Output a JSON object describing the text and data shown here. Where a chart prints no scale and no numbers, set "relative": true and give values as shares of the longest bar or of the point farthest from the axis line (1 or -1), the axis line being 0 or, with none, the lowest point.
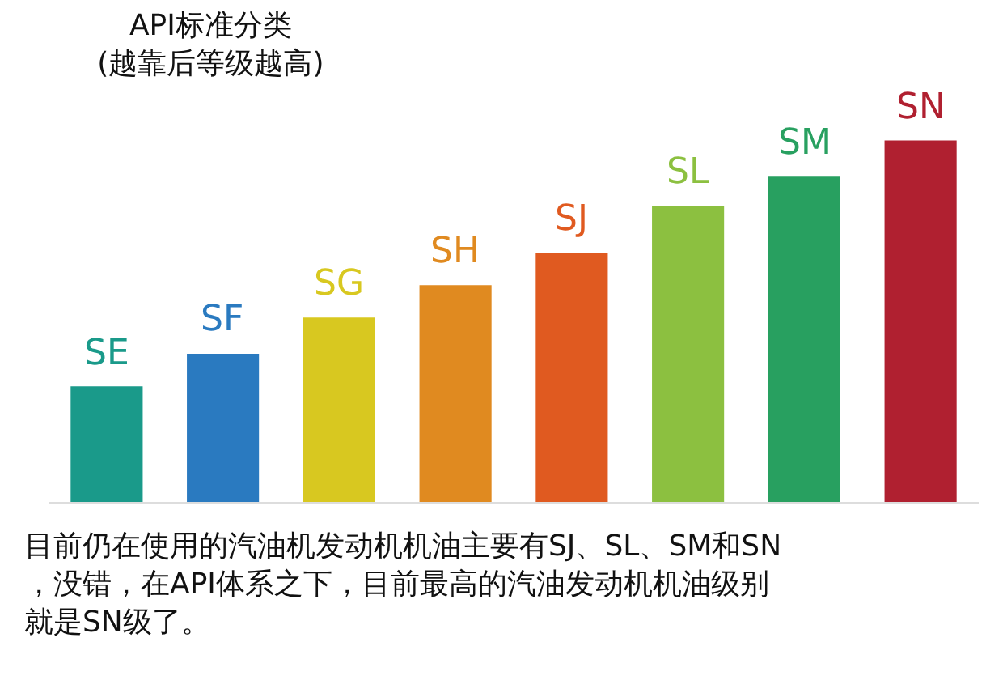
{
  "chart_data": {
    "type": "bar",
    "title": "API标准分类\n(越靠后等级越高)",
    "relative": true,
    "categories": [
      "SE",
      "SF",
      "SG",
      "SH",
      "SJ",
      "SL",
      "SM",
      "SN"
    ],
    "values": [
      0.32,
      0.41,
      0.51,
      0.6,
      0.69,
      0.82,
      0.9,
      1
    ],
    "colors": [
      "#1a9a8a",
      "#2a7ac0",
      "#d8c820",
      "#e08a20",
      "#e05a20",
      "#8cc040",
      "#28a060",
      "#b02030"
    ],
    "annotations": [
      "目前仍在使用的汽油机发动机机油主要有SJ、SL、SM和SN，没错，在API体系之下，目前最高的汽油发动机机油级别就是SN级了。"
    ]
  }
}
